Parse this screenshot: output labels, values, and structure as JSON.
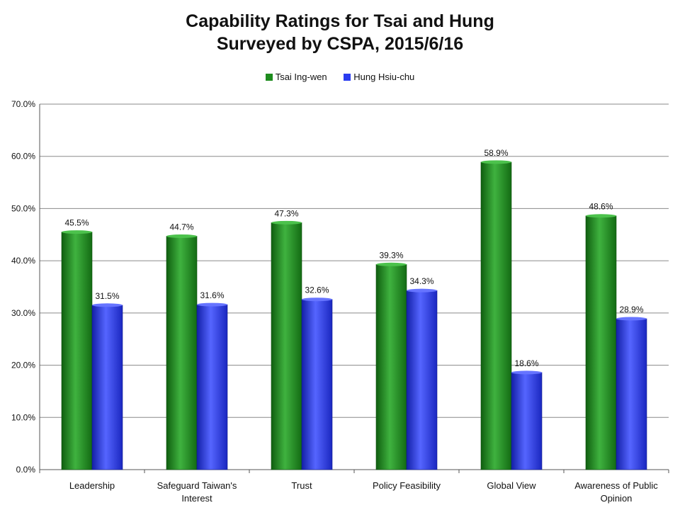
{
  "chart_data": {
    "type": "bar",
    "title": [
      "Capability Ratings for Tsai and Hung",
      "Surveyed by CSPA, 2015/6/16"
    ],
    "categories": [
      [
        "Leadership"
      ],
      [
        "Safeguard Taiwan's",
        "Interest"
      ],
      [
        "Trust"
      ],
      [
        "Policy Feasibility"
      ],
      [
        "Global View"
      ],
      [
        "Awareness of Public",
        "Opinion"
      ]
    ],
    "series": [
      {
        "name": "Tsai Ing-wen",
        "color": "#1e8c1e",
        "values": [
          45.5,
          44.7,
          47.3,
          39.3,
          58.9,
          48.6
        ],
        "labels": [
          "45.5%",
          "44.7%",
          "47.3%",
          "39.3%",
          "58.9%",
          "48.6%"
        ]
      },
      {
        "name": "Hung Hsiu-chu",
        "color": "#2a3cf0",
        "values": [
          31.5,
          31.6,
          32.6,
          34.3,
          18.6,
          28.9
        ],
        "labels": [
          "31.5%",
          "31.6%",
          "32.6%",
          "34.3%",
          "18.6%",
          "28.9%"
        ]
      }
    ],
    "ylim": [
      0,
      70
    ],
    "yticks": [
      0,
      10,
      20,
      30,
      40,
      50,
      60,
      70
    ],
    "ytick_labels": [
      "0.0%",
      "10.0%",
      "20.0%",
      "30.0%",
      "40.0%",
      "50.0%",
      "60.0%",
      "70.0%"
    ],
    "grid": true,
    "legend_position": "top"
  }
}
